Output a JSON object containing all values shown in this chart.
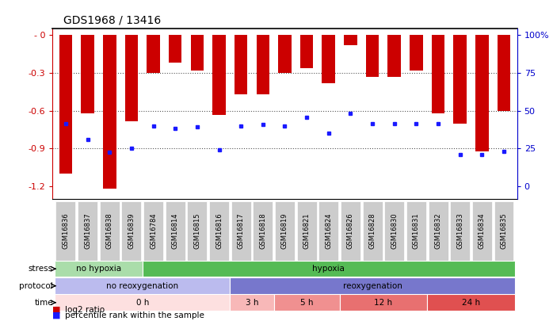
{
  "title": "GDS1968 / 13416",
  "samples": [
    "GSM16836",
    "GSM16837",
    "GSM16838",
    "GSM16839",
    "GSM16784",
    "GSM16814",
    "GSM16815",
    "GSM16816",
    "GSM16817",
    "GSM16818",
    "GSM16819",
    "GSM16821",
    "GSM16824",
    "GSM16826",
    "GSM16828",
    "GSM16830",
    "GSM16831",
    "GSM16832",
    "GSM16833",
    "GSM16834",
    "GSM16835"
  ],
  "bar_values": [
    -1.1,
    -0.62,
    -1.22,
    -0.68,
    -0.3,
    -0.22,
    -0.28,
    -0.63,
    -0.47,
    -0.47,
    -0.3,
    -0.26,
    -0.38,
    -0.08,
    -0.33,
    -0.33,
    -0.28,
    -0.62,
    -0.7,
    -0.92,
    -0.6
  ],
  "blue_dot_values": [
    -0.7,
    -0.83,
    -0.93,
    -0.9,
    -0.72,
    -0.74,
    -0.73,
    -0.91,
    -0.72,
    -0.71,
    -0.72,
    -0.65,
    -0.78,
    -0.62,
    -0.7,
    -0.7,
    -0.7,
    -0.7,
    -0.95,
    -0.95,
    -0.92
  ],
  "ylim_min": -1.3,
  "ylim_max": 0.05,
  "yticks": [
    0.0,
    -0.3,
    -0.6,
    -0.9,
    -1.2
  ],
  "ytick_labels": [
    "- 0",
    "-0.3",
    "-0.6",
    "-0.9",
    "-1.2"
  ],
  "ytick_labels_right": [
    "100%",
    "75",
    "50",
    "25",
    "0"
  ],
  "right_ytick_vals": [
    0.0,
    -0.3,
    -0.6,
    -0.9,
    -1.2
  ],
  "bar_color": "#cc0000",
  "dot_color": "#1a1aff",
  "grid_color": "#555555",
  "bg_color": "#ffffff",
  "stress_groups": [
    {
      "label": "no hypoxia",
      "start": 0,
      "end": 4,
      "color": "#aaddaa"
    },
    {
      "label": "hypoxia",
      "start": 4,
      "end": 21,
      "color": "#55bb55"
    }
  ],
  "protocol_groups": [
    {
      "label": "no reoxygenation",
      "start": 0,
      "end": 8,
      "color": "#bbbbee"
    },
    {
      "label": "reoxygenation",
      "start": 8,
      "end": 21,
      "color": "#7777cc"
    }
  ],
  "time_groups": [
    {
      "label": "0 h",
      "start": 0,
      "end": 8,
      "color": "#fde0e0"
    },
    {
      "label": "3 h",
      "start": 8,
      "end": 10,
      "color": "#f8b8b8"
    },
    {
      "label": "5 h",
      "start": 10,
      "end": 13,
      "color": "#f09090"
    },
    {
      "label": "12 h",
      "start": 13,
      "end": 17,
      "color": "#e87070"
    },
    {
      "label": "24 h",
      "start": 17,
      "end": 21,
      "color": "#e05050"
    }
  ],
  "axis_color": "#cc0000",
  "right_axis_color": "#0000cc",
  "tick_bg_color": "#cccccc"
}
